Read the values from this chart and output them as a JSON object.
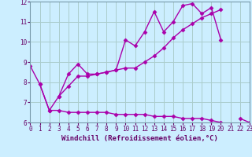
{
  "background_color": "#cceeff",
  "grid_color": "#aacccc",
  "line_color": "#aa00aa",
  "marker": "D",
  "markersize": 2.5,
  "linewidth": 1.0,
  "x": [
    0,
    1,
    2,
    3,
    4,
    5,
    6,
    7,
    8,
    9,
    10,
    11,
    12,
    13,
    14,
    15,
    16,
    17,
    18,
    19,
    20,
    21,
    22,
    23
  ],
  "line1": [
    8.8,
    7.9,
    6.6,
    7.3,
    8.4,
    8.9,
    8.4,
    8.4,
    8.5,
    8.6,
    10.1,
    9.8,
    10.5,
    11.5,
    10.5,
    11.0,
    11.8,
    11.9,
    11.4,
    11.7,
    10.1,
    null,
    6.2,
    6.0
  ],
  "line2": [
    null,
    null,
    null,
    7.3,
    7.8,
    8.3,
    8.3,
    8.4,
    8.5,
    8.6,
    8.7,
    8.7,
    9.0,
    9.3,
    9.7,
    10.2,
    10.6,
    10.9,
    11.2,
    11.4,
    11.6,
    null,
    null,
    null
  ],
  "line3": [
    null,
    7.9,
    6.6,
    6.6,
    6.5,
    6.5,
    6.5,
    6.5,
    6.5,
    6.4,
    6.4,
    6.4,
    6.4,
    6.3,
    6.3,
    6.3,
    6.2,
    6.2,
    6.2,
    6.1,
    6.0,
    null,
    null,
    null
  ],
  "xlim": [
    0,
    23
  ],
  "ylim": [
    6.0,
    12.0
  ],
  "yticks": [
    6,
    7,
    8,
    9,
    10,
    11,
    12
  ],
  "xticks": [
    0,
    1,
    2,
    3,
    4,
    5,
    6,
    7,
    8,
    9,
    10,
    11,
    12,
    13,
    14,
    15,
    16,
    17,
    18,
    19,
    20,
    21,
    22,
    23
  ],
  "xlabel": "Windchill (Refroidissement éolien,°C)",
  "xlabel_fontsize": 6.5,
  "tick_fontsize": 5.5,
  "ylabel_fontsize": 6.5
}
